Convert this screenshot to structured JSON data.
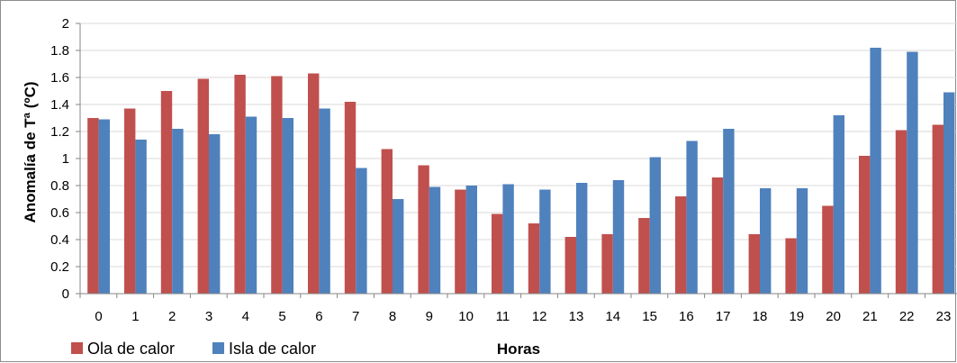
{
  "chart_data": {
    "type": "bar",
    "title": "",
    "xlabel": "Horas",
    "ylabel": "Anomalía de Tª (ºC)",
    "ylim": [
      0,
      2
    ],
    "yticks": [
      "0",
      "0.2",
      "0.4",
      "0.6",
      "0.8",
      "1",
      "1.2",
      "1.4",
      "1.6",
      "1.8",
      "2"
    ],
    "grid": "horizontal",
    "legend": "bottom-left",
    "categories": [
      "0",
      "1",
      "2",
      "3",
      "4",
      "5",
      "6",
      "7",
      "8",
      "9",
      "10",
      "11",
      "12",
      "13",
      "14",
      "15",
      "16",
      "17",
      "18",
      "19",
      "20",
      "21",
      "22",
      "23"
    ],
    "series": [
      {
        "name": "Ola de calor",
        "color": "#c0504d",
        "values": [
          1.3,
          1.37,
          1.5,
          1.59,
          1.62,
          1.61,
          1.63,
          1.42,
          1.07,
          0.95,
          0.77,
          0.59,
          0.52,
          0.42,
          0.44,
          0.56,
          0.72,
          0.86,
          0.44,
          0.41,
          0.65,
          1.02,
          1.21,
          1.25
        ]
      },
      {
        "name": "Isla de calor",
        "color": "#4f81bd",
        "values": [
          1.29,
          1.14,
          1.22,
          1.18,
          1.31,
          1.3,
          1.37,
          0.93,
          0.7,
          0.79,
          0.8,
          0.81,
          0.77,
          0.82,
          0.84,
          1.01,
          1.13,
          1.22,
          0.78,
          0.78,
          1.32,
          1.82,
          1.79,
          1.49
        ]
      }
    ]
  }
}
